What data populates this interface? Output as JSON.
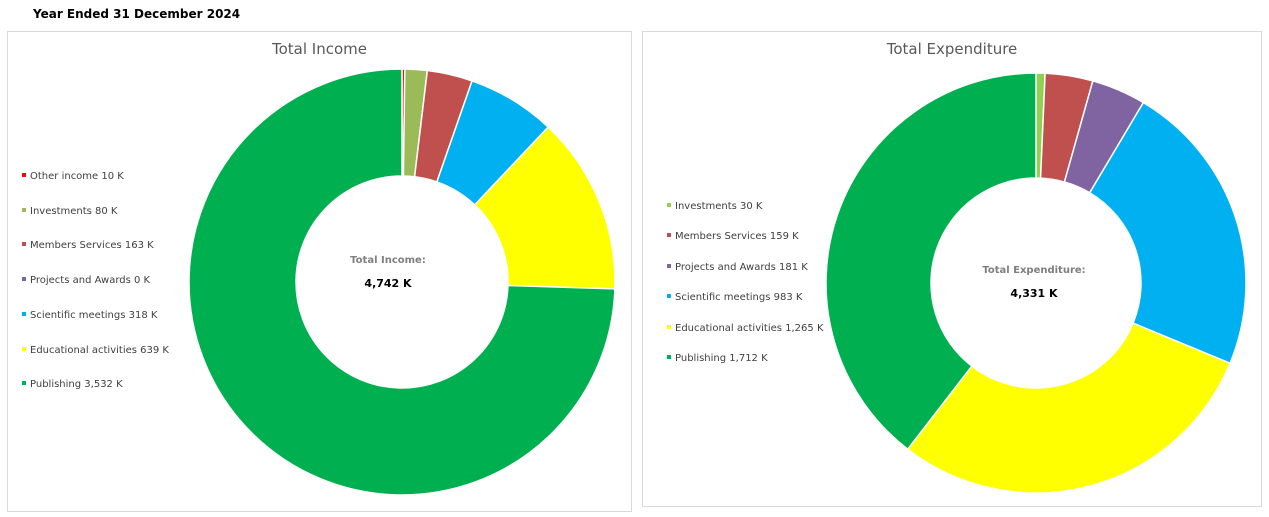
{
  "page": {
    "heading": "Year Ended 31 December 2024"
  },
  "chart_data": [
    {
      "type": "pie",
      "variant": "donut",
      "title": "Total Income",
      "center_label": "Total Income:",
      "center_value": "4,742 K",
      "categories": [
        "Other income",
        "Investments",
        "Members Services",
        "Projects and Awards",
        "Scientific meetings",
        "Educational activities",
        "Publishing"
      ],
      "values": [
        10,
        80,
        163,
        0,
        318,
        639,
        3532
      ],
      "value_labels": [
        "10 K",
        "80 K",
        "163 K",
        "0 K",
        "318 K",
        "639 K",
        "3,532 K"
      ],
      "colors": [
        "#ff0000",
        "#9bbb59",
        "#c0504d",
        "#8064a2",
        "#00b0f0",
        "#ffff00",
        "#00b050"
      ],
      "legend_position": "left"
    },
    {
      "type": "pie",
      "variant": "donut",
      "title": "Total Expenditure",
      "center_label": "Total Expenditure:",
      "center_value": "4,331 K",
      "categories": [
        "Investments",
        "Members Services",
        "Projects and Awards",
        "Scientific meetings",
        "Educational activities",
        "Publishing"
      ],
      "values": [
        30,
        159,
        181,
        983,
        1265,
        1712
      ],
      "value_labels": [
        "30 K",
        "159 K",
        "181 K",
        "983 K",
        "1,265 K",
        "1,712 K"
      ],
      "colors": [
        "#92d050",
        "#c0504d",
        "#8064a2",
        "#00b0f0",
        "#ffff00",
        "#00b050"
      ],
      "legend_position": "left"
    }
  ]
}
